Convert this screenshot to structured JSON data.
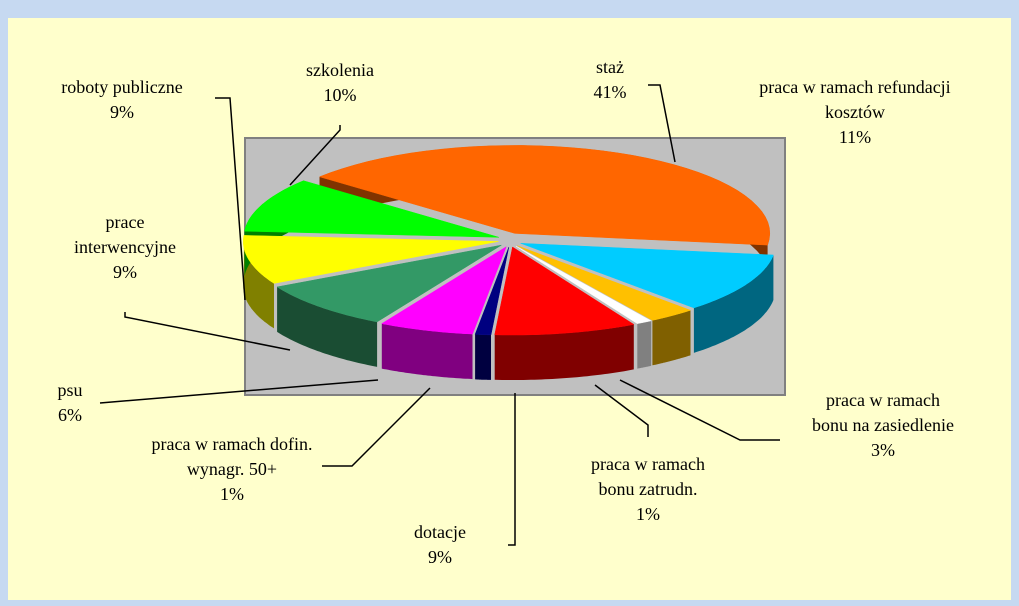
{
  "chart_data": {
    "type": "pie",
    "categories": [
      "staż",
      "praca w ramach refundacji kosztów",
      "praca w ramach bonu na zasiedlenie",
      "praca w ramach bonu zatrudn.",
      "dotacje",
      "praca w ramach dofin. wynagr. 50+",
      "psu",
      "prace interwencyjne",
      "roboty publiczne",
      "szkolenia"
    ],
    "values": [
      41,
      11,
      3,
      1,
      9,
      1,
      6,
      9,
      9,
      10
    ],
    "value_labels": [
      "41%",
      "11%",
      "3%",
      "1%",
      "9%",
      "1%",
      "6%",
      "9%",
      "9%",
      "10%"
    ],
    "colors": [
      "#ff6600",
      "#00ccff",
      "#ffc000",
      "#ffffff",
      "#ff0000",
      "#000080",
      "#ff00ff",
      "#339966",
      "#ffff00",
      "#00ff00"
    ]
  }
}
